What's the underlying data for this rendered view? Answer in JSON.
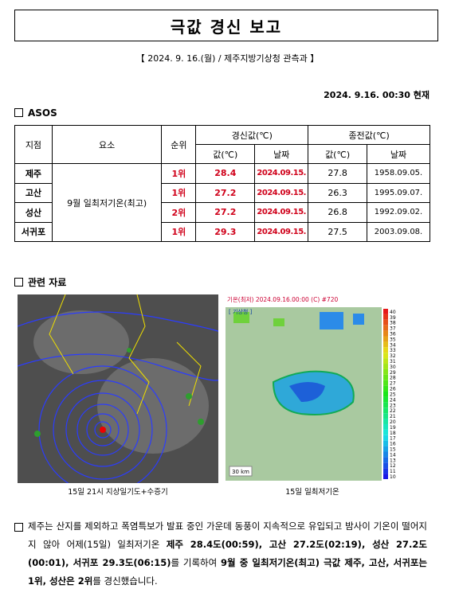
{
  "header": {
    "title": "극값 경신 보고",
    "subtitle": "【 2024. 9. 16.(월) / 제주지방기상청 관측과 】",
    "timestamp": "2024. 9.16. 00:30 현재"
  },
  "section1": {
    "heading": "ASOS"
  },
  "table": {
    "headers": [
      "지점",
      "요소",
      "순위",
      "경신값(℃)",
      "종전값(℃)"
    ],
    "subheaders": [
      "값(℃)",
      "날짜",
      "값(℃)",
      "날짜"
    ],
    "element": "9월 일최저기온(최고)",
    "rows": [
      [
        "제주",
        "1위",
        28.4,
        "2024.09.15.",
        27.8,
        "1958.09.05."
      ],
      [
        "고산",
        "1위",
        27.2,
        "2024.09.15.",
        26.3,
        "1995.09.07."
      ],
      [
        "성산",
        "2위",
        27.2,
        "2024.09.15.",
        26.8,
        "1992.09.02."
      ],
      [
        "서귀포",
        "1위",
        29.3,
        "2024.09.15.",
        27.5,
        "2003.09.08."
      ]
    ]
  },
  "section2": {
    "heading": "관련 자료",
    "images": [
      {
        "caption": "15일 21시 지상일기도+수증기"
      },
      {
        "caption": "15일 일최저기온",
        "title": "기온(최저) 2024.09.16.00:00 (C) #720",
        "source": "[ 기상청 ]",
        "scale_label": "30 km",
        "legend": [
          40,
          39,
          38,
          37,
          36,
          35,
          34,
          33,
          32,
          31,
          30,
          29,
          28,
          27,
          26,
          25,
          24,
          23,
          22,
          21,
          20,
          19,
          18,
          17,
          16,
          15,
          14,
          13,
          12,
          11,
          10
        ]
      }
    ]
  },
  "paragraph": {
    "parts": [
      {
        "text": "제주는 산지를 제외하고 폭염특보가 발표 중인 가운데 동풍이 지속적으로 유입되고 밤사이 기온이 떨어지지 않아 어제(15일) 일최저기온 ",
        "bold": false
      },
      {
        "text": "제주 28.4도(00:59), 고산 27.2도(02:19), 성산 27.2도(00:01), 서귀포 29.3도(06:15)",
        "bold": true
      },
      {
        "text": "를 기록하여 ",
        "bold": false
      },
      {
        "text": "9월 중 일최저기온(최고) 극값 제주, 고산, 서귀포는 1위, 성산은 2위",
        "bold": true
      },
      {
        "text": "를 경신했습니다.",
        "bold": false
      }
    ]
  }
}
